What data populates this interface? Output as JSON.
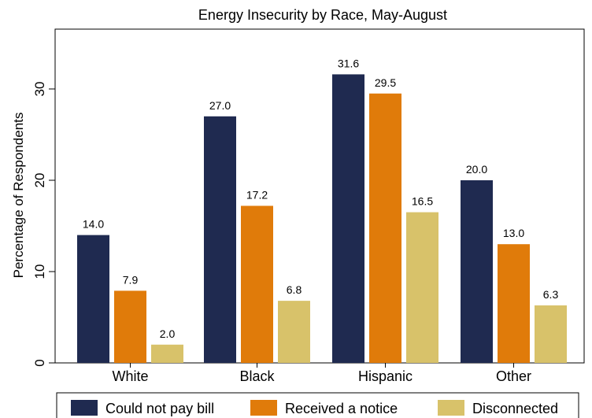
{
  "chart_data": {
    "type": "bar",
    "title": "Energy Insecurity by Race, May-August",
    "ylabel": "Percentage of Respondents",
    "xlabel": "",
    "categories": [
      "White",
      "Black",
      "Hispanic",
      "Other"
    ],
    "ylim": [
      0,
      35
    ],
    "yticks": [
      0,
      10,
      20,
      30
    ],
    "grid": false,
    "legend_position": "bottom",
    "series": [
      {
        "name": "Could not pay bill",
        "color": "#1f2a50",
        "values": [
          14.0,
          27.0,
          31.6,
          20.0
        ],
        "labels": [
          "14.0",
          "27.0",
          "31.6",
          "20.0"
        ]
      },
      {
        "name": "Received a notice",
        "color": "#e07b0a",
        "values": [
          7.9,
          17.2,
          29.5,
          13.0
        ],
        "labels": [
          "7.9",
          "17.2",
          "29.5",
          "13.0"
        ]
      },
      {
        "name": "Disconnected",
        "color": "#d8c26a",
        "values": [
          2.0,
          6.8,
          16.5,
          6.3
        ],
        "labels": [
          "2.0",
          "6.8",
          "16.5",
          "6.3"
        ]
      }
    ]
  }
}
